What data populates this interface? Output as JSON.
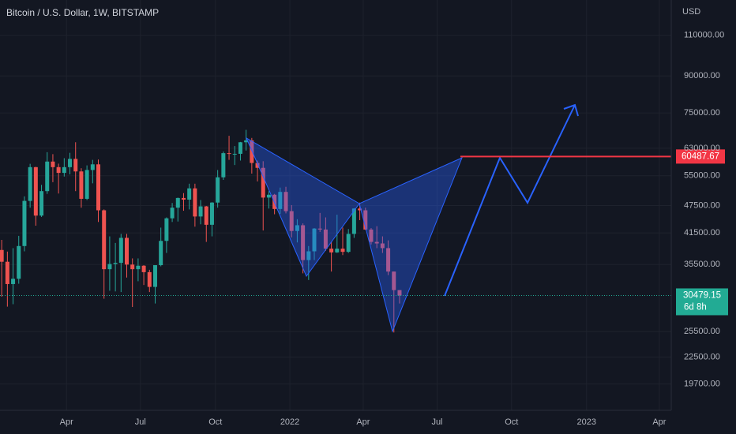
{
  "chart_data": {
    "type": "candlestick",
    "title": "Bitcoin / U.S. Dollar, 1W, BITSTAMP",
    "y_unit": "USD",
    "log_scale": true,
    "grid": true,
    "up_color": "#26a69a",
    "down_color": "#ef5350",
    "ylim": [
      17300,
      130900
    ],
    "yticks": [
      {
        "value": 110000,
        "label": "110000.00"
      },
      {
        "value": 90000,
        "label": "90000.00"
      },
      {
        "value": 75000,
        "label": "75000.00"
      },
      {
        "value": 63000,
        "label": "63000.00"
      },
      {
        "value": 55000,
        "label": "55000.00"
      },
      {
        "value": 47500,
        "label": "47500.00"
      },
      {
        "value": 41500,
        "label": "41500.00"
      },
      {
        "value": 35500,
        "label": "35500.00"
      },
      {
        "value": 25500,
        "label": "25500.00"
      },
      {
        "value": 22500,
        "label": "22500.00"
      },
      {
        "value": 19700,
        "label": "19700.00"
      }
    ],
    "xlim": [
      -0.3,
      117.8
    ],
    "xticks": [
      {
        "value": 11.4,
        "label": "Apr"
      },
      {
        "value": 24.4,
        "label": "Jul"
      },
      {
        "value": 37.6,
        "label": "Oct"
      },
      {
        "value": 50.7,
        "label": "2022"
      },
      {
        "value": 63.6,
        "label": "Apr"
      },
      {
        "value": 76.6,
        "label": "Jul"
      },
      {
        "value": 89.7,
        "label": "Oct"
      },
      {
        "value": 102.9,
        "label": "2023"
      },
      {
        "value": 115.7,
        "label": "Apr"
      }
    ],
    "open": [
      38150,
      36000,
      32250,
      33100,
      38900,
      48600,
      57400,
      45200,
      51000,
      59000,
      57400,
      55800,
      57400,
      59800,
      56200,
      49100,
      56600,
      58200,
      46400,
      34700,
      35600,
      35800,
      40500,
      35500,
      34700,
      35300,
      34200,
      31800,
      35400,
      39900,
      44600,
      47000,
      49300,
      48900,
      51700,
      45000,
      47300,
      43200,
      48200,
      54600,
      61500,
      61300,
      61300,
      64900,
      65500,
      58600,
      57200,
      49400,
      50100,
      46700,
      50800,
      46200,
      41900,
      43100,
      36300,
      37900,
      42400,
      42200,
      38400,
      37700,
      38400,
      37800,
      41300,
      46800,
      46400,
      42200,
      39700,
      39400,
      38500,
      34300,
      31300
    ],
    "high": [
      40100,
      37850,
      38500,
      40900,
      49700,
      58350,
      57500,
      52600,
      61800,
      61200,
      58400,
      60000,
      61600,
      64900,
      57100,
      57900,
      59500,
      59600,
      46600,
      40800,
      39500,
      41300,
      41300,
      36600,
      36600,
      35400,
      34600,
      35400,
      42600,
      44800,
      48100,
      49400,
      50500,
      52900,
      52900,
      48800,
      47400,
      48300,
      56600,
      62000,
      67000,
      63700,
      65000,
      69000,
      66300,
      59300,
      59100,
      51000,
      50300,
      51900,
      52100,
      47600,
      44400,
      43500,
      38900,
      42500,
      45800,
      44800,
      39800,
      45400,
      42600,
      42300,
      46900,
      48200,
      47000,
      42500,
      42900,
      40800,
      40000,
      34300,
      31300
    ],
    "low": [
      30300,
      28850,
      29200,
      32300,
      37900,
      47000,
      43000,
      44900,
      50300,
      53300,
      50400,
      54800,
      55400,
      51000,
      47000,
      48800,
      53000,
      43800,
      30000,
      31200,
      31100,
      31000,
      33300,
      28800,
      32700,
      32100,
      31000,
      29300,
      35200,
      37600,
      43800,
      43900,
      46300,
      46600,
      42800,
      43300,
      39700,
      40800,
      47000,
      53900,
      59500,
      58000,
      59300,
      62300,
      55600,
      53500,
      42000,
      46800,
      45500,
      45600,
      45700,
      40600,
      39600,
      34000,
      32900,
      36300,
      41700,
      38000,
      34300,
      37600,
      37200,
      37600,
      40500,
      44200,
      42100,
      39200,
      38500,
      37600,
      33700,
      25400,
      29300
    ],
    "close": [
      36000,
      32250,
      33100,
      38900,
      48600,
      57400,
      45200,
      51000,
      59000,
      57400,
      55800,
      57400,
      59800,
      56200,
      49100,
      56600,
      58200,
      46400,
      34700,
      35600,
      35800,
      40500,
      35500,
      34700,
      35300,
      34200,
      31800,
      35400,
      39900,
      44600,
      47000,
      49300,
      48900,
      51700,
      45000,
      47300,
      43200,
      48200,
      54600,
      61500,
      61300,
      61300,
      64900,
      65500,
      58600,
      57200,
      49400,
      50100,
      46700,
      50800,
      46200,
      41900,
      43100,
      36300,
      37900,
      42400,
      42200,
      38400,
      37700,
      38400,
      37800,
      41300,
      46800,
      46400,
      42200,
      39700,
      39400,
      38500,
      34300,
      31300,
      30479.15
    ],
    "level": {
      "value": 60487.67,
      "label": "60487.67",
      "color": "#f23645"
    },
    "last_price": {
      "value": 30479.15,
      "label": "30479.15",
      "countdown": "6d 8h",
      "color": "#22ab94"
    }
  }
}
